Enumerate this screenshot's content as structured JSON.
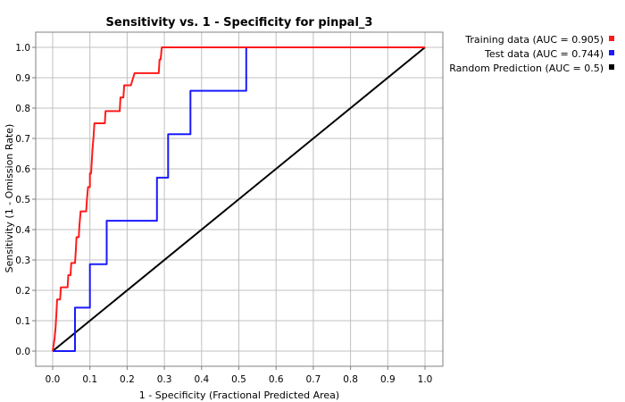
{
  "chart_data": {
    "type": "line",
    "title": "Sensitivity vs. 1 - Specificity for pinpal_3",
    "xlabel": "1 - Specificity  (Fractional Predicted Area)",
    "ylabel": "Sensitivity  (1 - Omission Rate)",
    "xlim": [
      0,
      1
    ],
    "ylim": [
      0,
      1
    ],
    "x_ticks": [
      "0.0",
      "0.1",
      "0.2",
      "0.3",
      "0.4",
      "0.5",
      "0.6",
      "0.7",
      "0.8",
      "0.9",
      "1.0"
    ],
    "y_ticks": [
      "0.0",
      "0.1",
      "0.2",
      "0.3",
      "0.4",
      "0.5",
      "0.6",
      "0.7",
      "0.8",
      "0.9",
      "1.0"
    ],
    "grid": true,
    "legend_position": "right",
    "series": [
      {
        "name": "Training data (AUC = 0.905)",
        "color": "#ff1a1a",
        "points": [
          [
            0,
            0
          ],
          [
            0.005,
            0.04
          ],
          [
            0.008,
            0.08
          ],
          [
            0.01,
            0.125
          ],
          [
            0.012,
            0.17
          ],
          [
            0.02,
            0.17
          ],
          [
            0.022,
            0.21
          ],
          [
            0.04,
            0.21
          ],
          [
            0.042,
            0.25
          ],
          [
            0.048,
            0.25
          ],
          [
            0.05,
            0.29
          ],
          [
            0.06,
            0.29
          ],
          [
            0.062,
            0.33
          ],
          [
            0.064,
            0.375
          ],
          [
            0.07,
            0.375
          ],
          [
            0.072,
            0.415
          ],
          [
            0.075,
            0.46
          ],
          [
            0.09,
            0.46
          ],
          [
            0.092,
            0.5
          ],
          [
            0.095,
            0.54
          ],
          [
            0.1,
            0.54
          ],
          [
            0.1,
            0.585
          ],
          [
            0.103,
            0.585
          ],
          [
            0.105,
            0.625
          ],
          [
            0.107,
            0.665
          ],
          [
            0.11,
            0.71
          ],
          [
            0.112,
            0.75
          ],
          [
            0.14,
            0.75
          ],
          [
            0.142,
            0.79
          ],
          [
            0.18,
            0.79
          ],
          [
            0.182,
            0.835
          ],
          [
            0.19,
            0.835
          ],
          [
            0.192,
            0.875
          ],
          [
            0.2,
            0.875
          ],
          [
            0.21,
            0.875
          ],
          [
            0.22,
            0.915
          ],
          [
            0.285,
            0.915
          ],
          [
            0.287,
            0.96
          ],
          [
            0.29,
            0.96
          ],
          [
            0.293,
            1.0
          ],
          [
            1,
            1
          ]
        ]
      },
      {
        "name": "Test data (AUC = 0.744)",
        "color": "#1a1aff",
        "points": [
          [
            0,
            0
          ],
          [
            0.06,
            0
          ],
          [
            0.06,
            0.143
          ],
          [
            0.1,
            0.143
          ],
          [
            0.1,
            0.286
          ],
          [
            0.145,
            0.286
          ],
          [
            0.145,
            0.429
          ],
          [
            0.28,
            0.429
          ],
          [
            0.28,
            0.571
          ],
          [
            0.31,
            0.571
          ],
          [
            0.31,
            0.714
          ],
          [
            0.37,
            0.714
          ],
          [
            0.37,
            0.857
          ],
          [
            0.52,
            0.857
          ],
          [
            0.52,
            1.0
          ],
          [
            1,
            1
          ]
        ]
      },
      {
        "name": "Random Prediction (AUC = 0.5)",
        "color": "#000000",
        "points": [
          [
            0,
            0
          ],
          [
            1,
            1
          ]
        ]
      }
    ]
  }
}
